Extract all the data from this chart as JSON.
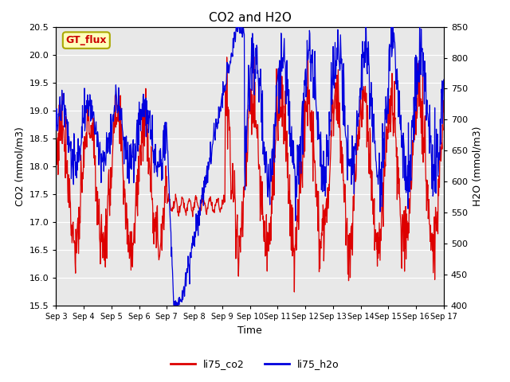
{
  "title": "CO2 and H2O",
  "xlabel": "Time",
  "ylabel_left": "CO2 (mmol/m3)",
  "ylabel_right": "H2O (mmol/m3)",
  "ylim_left": [
    15.5,
    20.5
  ],
  "ylim_right": [
    400,
    850
  ],
  "bg_plot": "#e8e8e8",
  "bg_fig": "#ffffff",
  "co2_color": "#dd0000",
  "h2o_color": "#0000dd",
  "gt_flux_text": "GT_flux",
  "gt_flux_fc": "#ffffbb",
  "gt_flux_ec": "#aaa800",
  "gt_flux_textcolor": "#cc0000",
  "legend_co2": "li75_co2",
  "legend_h2o": "li75_h2o",
  "xtick_labels": [
    "Sep 3",
    "Sep 4",
    "Sep 5",
    "Sep 6",
    "Sep 7",
    "Sep 8",
    "Sep 9",
    "Sep 10",
    "Sep 11",
    "Sep 12",
    "Sep 13",
    "Sep 14",
    "Sep 15",
    "Sep 16",
    "Sep 17"
  ],
  "yticks_left": [
    15.5,
    16.0,
    16.5,
    17.0,
    17.5,
    18.0,
    18.5,
    19.0,
    19.5,
    20.0,
    20.5
  ],
  "yticks_right": [
    400,
    450,
    500,
    550,
    600,
    650,
    700,
    750,
    800,
    850
  ],
  "n_points": 1000,
  "seed": 77,
  "lw": 0.9
}
